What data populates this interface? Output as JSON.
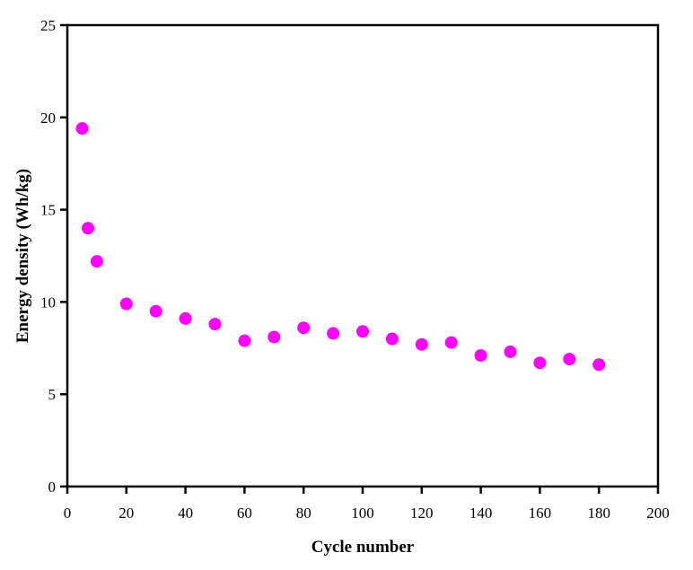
{
  "figure": {
    "background_color": "#ffffff"
  },
  "chart_data": {
    "type": "scatter",
    "title": "",
    "xlabel": "Cycle number",
    "ylabel": "Energy density (Wh/kg)",
    "xlim": [
      0,
      200
    ],
    "ylim": [
      0,
      25
    ],
    "x_ticks": [
      0,
      20,
      40,
      60,
      80,
      100,
      120,
      140,
      160,
      180,
      200
    ],
    "y_ticks": [
      0,
      5,
      10,
      15,
      20,
      25
    ],
    "grid": false,
    "legend_position": "none",
    "axis_color": "#000000",
    "marker": {
      "shape": "circle",
      "color": "#FF00FF",
      "radius_px": 7
    },
    "x": [
      5,
      7,
      10,
      20,
      30,
      40,
      50,
      60,
      70,
      80,
      90,
      100,
      110,
      120,
      130,
      140,
      150,
      160,
      170,
      180
    ],
    "y": [
      19.4,
      14.0,
      12.2,
      9.9,
      9.5,
      9.1,
      8.8,
      7.9,
      8.1,
      8.6,
      8.3,
      8.4,
      8.0,
      7.7,
      7.8,
      7.1,
      7.3,
      6.7,
      6.9,
      6.6
    ]
  }
}
